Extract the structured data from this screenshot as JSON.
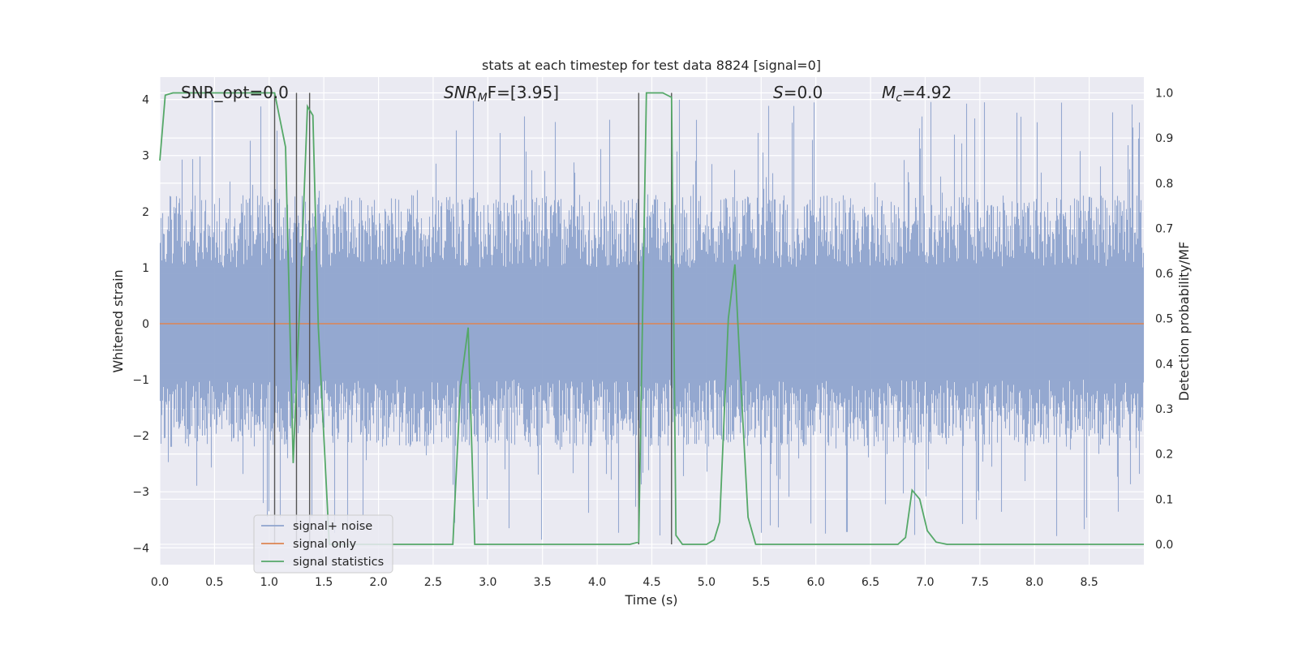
{
  "chart_data": {
    "type": "line",
    "title": "stats at each timestep for test data 8824 [signal=0]",
    "xlabel": "Time (s)",
    "ylabel": "Whitened strain",
    "y2label": "Detection probability/MF",
    "xlim": [
      0.0,
      9.0
    ],
    "ylim": [
      -4.3,
      4.4
    ],
    "y2lim": [
      -0.045,
      1.035
    ],
    "xticks": [
      "0.0",
      "0.5",
      "1.0",
      "1.5",
      "2.0",
      "2.5",
      "3.0",
      "3.5",
      "4.0",
      "4.5",
      "5.0",
      "5.5",
      "6.0",
      "6.5",
      "7.0",
      "7.5",
      "8.0",
      "8.5"
    ],
    "yticks": [
      "4",
      "3",
      "2",
      "1",
      "0",
      "−1",
      "−2",
      "−3",
      "−4"
    ],
    "y2ticks": [
      "1.0",
      "0.9",
      "0.8",
      "0.7",
      "0.6",
      "0.5",
      "0.4",
      "0.3",
      "0.2",
      "0.1",
      "0.0"
    ],
    "grid": true,
    "legend_position": "lower-left",
    "colors": {
      "background": "#eaeaf2",
      "grid": "#ffffff",
      "noise": "#8fa4cd",
      "signal": "#dd8452",
      "statistics": "#55a868",
      "vlines": "#555555"
    },
    "annotations": {
      "snr_opt": "SNR_opt=0.0",
      "snr_mf_base": "SNR",
      "snr_mf_sub": "M",
      "snr_mf_rest": "F=[3.95]",
      "s_var": "S",
      "s_rest": "=0.0",
      "mc_base": "M",
      "mc_sub": "c",
      "mc_rest": "=4.92"
    },
    "legend": [
      "signal+ noise",
      "signal only",
      "signal statistics"
    ],
    "series": [
      {
        "name": "signal+ noise",
        "description_kind": "noise",
        "amplitude_envelope": [
          -3.9,
          4.0
        ]
      },
      {
        "name": "signal only",
        "x": [
          0.0,
          9.0
        ],
        "y": [
          0.0,
          0.0
        ]
      },
      {
        "name": "signal statistics",
        "axis": "right",
        "x": [
          0.0,
          0.05,
          0.12,
          0.3,
          0.6,
          0.9,
          1.05,
          1.15,
          1.22,
          1.3,
          1.35,
          1.4,
          1.45,
          1.55,
          1.7,
          2.0,
          2.4,
          2.68,
          2.75,
          2.82,
          2.88,
          3.0,
          3.5,
          4.0,
          4.3,
          4.38,
          4.45,
          4.6,
          4.68,
          4.72,
          4.78,
          4.85,
          5.0,
          5.07,
          5.12,
          5.2,
          5.26,
          5.32,
          5.38,
          5.45,
          5.6,
          6.0,
          6.5,
          6.75,
          6.82,
          6.88,
          6.95,
          7.02,
          7.1,
          7.2,
          7.6,
          8.0,
          8.5,
          9.0
        ],
        "y": [
          0.85,
          0.995,
          1.0,
          1.0,
          1.0,
          1.0,
          1.0,
          0.88,
          0.18,
          0.65,
          0.97,
          0.95,
          0.48,
          0.0,
          0.0,
          0.0,
          0.0,
          0.0,
          0.35,
          0.48,
          0.0,
          0.0,
          0.0,
          0.0,
          0.0,
          0.005,
          1.0,
          1.0,
          0.99,
          0.02,
          0.0,
          0.0,
          0.0,
          0.01,
          0.05,
          0.5,
          0.62,
          0.33,
          0.06,
          0.0,
          0.0,
          0.0,
          0.0,
          0.0,
          0.015,
          0.12,
          0.1,
          0.03,
          0.005,
          0.0,
          0.0,
          0.0,
          0.0,
          0.0
        ]
      }
    ],
    "vertical_lines_x": [
      1.05,
      1.25,
      1.37,
      4.38,
      4.68
    ]
  }
}
